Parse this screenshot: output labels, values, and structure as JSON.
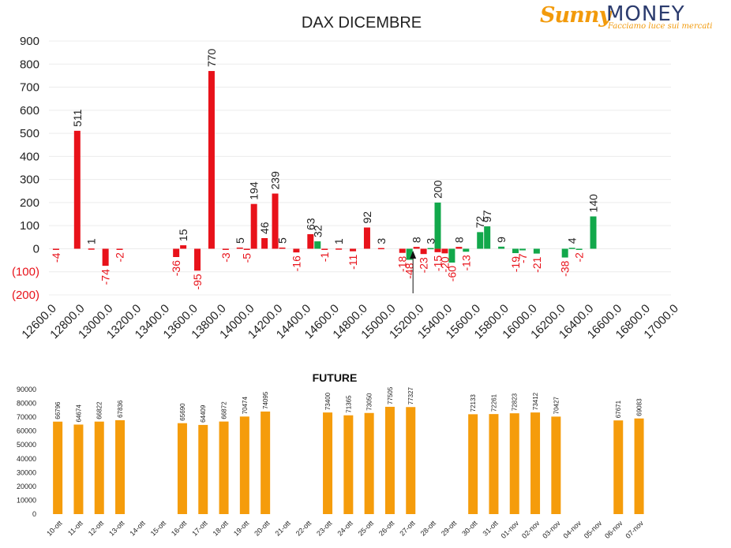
{
  "logo": {
    "brand_a": "Sunny",
    "brand_b": "MONEY",
    "tagline": "Facciamo luce sui mercati"
  },
  "colors": {
    "negative": "#e8121a",
    "positive": "#12a84b",
    "future": "#f59c0b",
    "text": "#222222",
    "neg_text": "#e8121a"
  },
  "chart_data": [
    {
      "type": "bar",
      "title": "DAX DICEMBRE",
      "xlabel": "",
      "ylabel": "",
      "ylim": [
        -200,
        900
      ],
      "yticks": [
        "900",
        "800",
        "700",
        "600",
        "500",
        "400",
        "300",
        "200",
        "100",
        "0",
        "(100)",
        "(200)"
      ],
      "x_ticks": [
        "12600.0",
        "12800.0",
        "13000.0",
        "13200.0",
        "13400.0",
        "13600.0",
        "13800.0",
        "14000.0",
        "14200.0",
        "14400.0",
        "14600.0",
        "14800.0",
        "15000.0",
        "15200.0",
        "15400.0",
        "15600.0",
        "15800.0",
        "16000.0",
        "16200.0",
        "16400.0",
        "16600.0",
        "16800.0",
        "17000.0"
      ],
      "grid": true,
      "marker_label": "",
      "series": [
        {
          "color": "red",
          "points": [
            {
              "x": 12650,
              "y": -4
            },
            {
              "x": 12800,
              "y": 511
            },
            {
              "x": 12900,
              "y": 1
            },
            {
              "x": 13000,
              "y": -74
            },
            {
              "x": 13100,
              "y": -2
            },
            {
              "x": 13500,
              "y": -36
            },
            {
              "x": 13550,
              "y": 15
            },
            {
              "x": 13650,
              "y": -95
            },
            {
              "x": 13750,
              "y": 770
            },
            {
              "x": 13850,
              "y": -3
            },
            {
              "x": 13950,
              "y": 5
            },
            {
              "x": 14000,
              "y": -5
            },
            {
              "x": 14050,
              "y": 194
            },
            {
              "x": 14125,
              "y": 46
            },
            {
              "x": 14200,
              "y": 239
            },
            {
              "x": 14250,
              "y": 5
            },
            {
              "x": 14350,
              "y": -16
            },
            {
              "x": 14450,
              "y": 63
            },
            {
              "x": 14550,
              "y": -1
            },
            {
              "x": 14650,
              "y": 1
            },
            {
              "x": 14750,
              "y": -11
            },
            {
              "x": 14850,
              "y": 92
            },
            {
              "x": 14950,
              "y": 3
            },
            {
              "x": 15100,
              "y": -18
            },
            {
              "x": 15200,
              "y": 8
            },
            {
              "x": 15250,
              "y": -23
            },
            {
              "x": 15350,
              "y": -15
            },
            {
              "x": 15400,
              "y": -20
            },
            {
              "x": 15500,
              "y": 8
            }
          ]
        },
        {
          "color": "green",
          "points": [
            {
              "x": 14500,
              "y": 32
            },
            {
              "x": 15150,
              "y": -48
            },
            {
              "x": 15300,
              "y": 3
            },
            {
              "x": 15350,
              "y": 200
            },
            {
              "x": 15450,
              "y": -60
            },
            {
              "x": 15550,
              "y": -13
            },
            {
              "x": 15650,
              "y": 72
            },
            {
              "x": 15700,
              "y": 97
            },
            {
              "x": 15800,
              "y": 9
            },
            {
              "x": 15900,
              "y": -19
            },
            {
              "x": 15950,
              "y": -7
            },
            {
              "x": 16050,
              "y": -21
            },
            {
              "x": 16250,
              "y": -38
            },
            {
              "x": 16300,
              "y": 4
            },
            {
              "x": 16350,
              "y": -2
            },
            {
              "x": 16450,
              "y": 140
            }
          ]
        }
      ]
    },
    {
      "type": "bar",
      "title": "FUTURE",
      "xlabel": "",
      "ylabel": "",
      "ylim": [
        0,
        90000
      ],
      "yticks": [
        "90000",
        "80000",
        "70000",
        "60000",
        "50000",
        "40000",
        "30000",
        "20000",
        "10000",
        "0"
      ],
      "categories": [
        "10-ott",
        "11-ott",
        "12-ott",
        "13-ott",
        "14-ott",
        "15-ott",
        "16-ott",
        "17-ott",
        "18-ott",
        "19-ott",
        "20-ott",
        "21-ott",
        "22-ott",
        "23-ott",
        "24-ott",
        "25-ott",
        "26-ott",
        "27-ott",
        "28-ott",
        "29-ott",
        "30-ott",
        "31-ott",
        "01-nov",
        "02-nov",
        "03-nov",
        "04-nov",
        "05-nov",
        "06-nov",
        "07-nov"
      ],
      "values": [
        66796,
        64674,
        66822,
        67836,
        null,
        null,
        65690,
        64409,
        66872,
        70474,
        74095,
        null,
        null,
        73400,
        71365,
        73050,
        77505,
        77327,
        null,
        null,
        72133,
        72261,
        72823,
        73412,
        70427,
        null,
        null,
        67671,
        69083
      ]
    }
  ]
}
